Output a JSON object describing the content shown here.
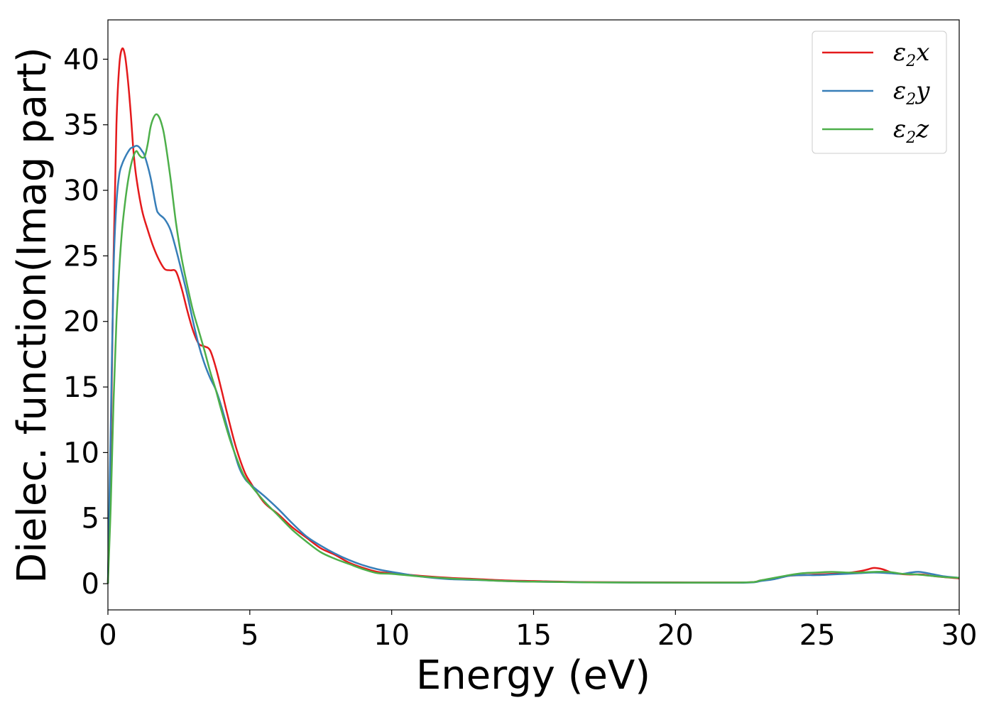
{
  "chart_data": {
    "type": "line",
    "xlabel": "Energy (eV)",
    "ylabel": "Dielec. function(Imag part)",
    "xlim": [
      0,
      30
    ],
    "ylim": [
      -2,
      43
    ],
    "xticks": [
      0,
      5,
      10,
      15,
      20,
      25,
      30
    ],
    "yticks": [
      0,
      5,
      10,
      15,
      20,
      25,
      30,
      35,
      40
    ],
    "grid": false,
    "legend_position": "top-right",
    "series": [
      {
        "name": "ε2x",
        "legend_base": "ε",
        "legend_sub": "2",
        "legend_suffix": "x",
        "color": "#e41a1c",
        "points": [
          [
            0,
            0
          ],
          [
            0.1,
            10
          ],
          [
            0.2,
            25
          ],
          [
            0.3,
            35
          ],
          [
            0.4,
            39.5
          ],
          [
            0.5,
            40.8
          ],
          [
            0.6,
            40.3
          ],
          [
            0.7,
            38.5
          ],
          [
            0.8,
            36
          ],
          [
            0.9,
            33
          ],
          [
            1.0,
            31
          ],
          [
            1.2,
            28.5
          ],
          [
            1.4,
            27
          ],
          [
            1.6,
            25.7
          ],
          [
            1.8,
            24.7
          ],
          [
            2.0,
            24.0
          ],
          [
            2.2,
            23.9
          ],
          [
            2.4,
            23.8
          ],
          [
            2.6,
            22.5
          ],
          [
            2.8,
            20.8
          ],
          [
            3.0,
            19.3
          ],
          [
            3.2,
            18.3
          ],
          [
            3.4,
            18.1
          ],
          [
            3.6,
            17.8
          ],
          [
            3.8,
            16.5
          ],
          [
            4.0,
            14.8
          ],
          [
            4.2,
            13
          ],
          [
            4.5,
            10.5
          ],
          [
            4.8,
            8.6
          ],
          [
            5.0,
            7.8
          ],
          [
            5.5,
            6.2
          ],
          [
            6.0,
            5.3
          ],
          [
            6.5,
            4.3
          ],
          [
            7.0,
            3.5
          ],
          [
            7.5,
            2.7
          ],
          [
            8.0,
            2.2
          ],
          [
            8.5,
            1.6
          ],
          [
            9.0,
            1.2
          ],
          [
            9.5,
            0.9
          ],
          [
            10.0,
            0.8
          ],
          [
            11,
            0.6
          ],
          [
            12,
            0.45
          ],
          [
            13,
            0.35
          ],
          [
            14,
            0.25
          ],
          [
            15,
            0.2
          ],
          [
            17,
            0.12
          ],
          [
            20,
            0.1
          ],
          [
            22.5,
            0.1
          ],
          [
            23,
            0.25
          ],
          [
            23.5,
            0.4
          ],
          [
            24,
            0.6
          ],
          [
            24.5,
            0.65
          ],
          [
            25,
            0.7
          ],
          [
            25.5,
            0.75
          ],
          [
            26,
            0.8
          ],
          [
            26.5,
            0.95
          ],
          [
            26.8,
            1.1
          ],
          [
            27.0,
            1.2
          ],
          [
            27.3,
            1.1
          ],
          [
            27.7,
            0.8
          ],
          [
            28.2,
            0.7
          ],
          [
            28.7,
            0.7
          ],
          [
            29.2,
            0.55
          ],
          [
            30,
            0.4
          ]
        ]
      },
      {
        "name": "ε2y",
        "legend_base": "ε",
        "legend_sub": "2",
        "legend_suffix": "y",
        "color": "#377eb8",
        "points": [
          [
            0,
            0
          ],
          [
            0.1,
            12
          ],
          [
            0.2,
            24
          ],
          [
            0.3,
            29
          ],
          [
            0.4,
            31.2
          ],
          [
            0.5,
            32
          ],
          [
            0.6,
            32.5
          ],
          [
            0.7,
            32.9
          ],
          [
            0.8,
            33.2
          ],
          [
            0.9,
            33.3
          ],
          [
            1.0,
            33.4
          ],
          [
            1.1,
            33.3
          ],
          [
            1.2,
            33.0
          ],
          [
            1.3,
            32.6
          ],
          [
            1.5,
            31.0
          ],
          [
            1.7,
            28.7
          ],
          [
            1.8,
            28.2
          ],
          [
            2.0,
            27.8
          ],
          [
            2.2,
            27.0
          ],
          [
            2.4,
            25.5
          ],
          [
            2.6,
            23.8
          ],
          [
            2.8,
            22
          ],
          [
            3.0,
            20
          ],
          [
            3.2,
            18.2
          ],
          [
            3.4,
            16.8
          ],
          [
            3.6,
            15.7
          ],
          [
            3.8,
            14.8
          ],
          [
            4.0,
            13.5
          ],
          [
            4.3,
            11.2
          ],
          [
            4.6,
            9
          ],
          [
            4.8,
            8.1
          ],
          [
            5.0,
            7.6
          ],
          [
            5.5,
            6.7
          ],
          [
            6.0,
            5.7
          ],
          [
            6.5,
            4.6
          ],
          [
            7.0,
            3.6
          ],
          [
            7.5,
            2.9
          ],
          [
            8.0,
            2.3
          ],
          [
            8.5,
            1.8
          ],
          [
            9.0,
            1.4
          ],
          [
            9.5,
            1.1
          ],
          [
            10.0,
            0.9
          ],
          [
            11,
            0.55
          ],
          [
            12,
            0.35
          ],
          [
            13,
            0.28
          ],
          [
            14,
            0.2
          ],
          [
            15,
            0.15
          ],
          [
            17,
            0.1
          ],
          [
            20,
            0.08
          ],
          [
            22.5,
            0.08
          ],
          [
            23,
            0.2
          ],
          [
            23.5,
            0.35
          ],
          [
            24,
            0.6
          ],
          [
            24.5,
            0.65
          ],
          [
            25,
            0.65
          ],
          [
            25.5,
            0.7
          ],
          [
            26,
            0.75
          ],
          [
            26.5,
            0.8
          ],
          [
            27,
            0.85
          ],
          [
            27.5,
            0.8
          ],
          [
            28,
            0.75
          ],
          [
            28.3,
            0.85
          ],
          [
            28.6,
            0.9
          ],
          [
            29.0,
            0.75
          ],
          [
            29.5,
            0.55
          ],
          [
            30,
            0.45
          ]
        ]
      },
      {
        "name": "ε2z",
        "legend_base": "ε",
        "legend_sub": "2",
        "legend_suffix": "z",
        "color": "#4daf4a",
        "points": [
          [
            0,
            0
          ],
          [
            0.1,
            6
          ],
          [
            0.2,
            14
          ],
          [
            0.3,
            20
          ],
          [
            0.4,
            24
          ],
          [
            0.5,
            27
          ],
          [
            0.6,
            29
          ],
          [
            0.7,
            30.6
          ],
          [
            0.8,
            31.8
          ],
          [
            0.9,
            32.6
          ],
          [
            1.0,
            33.0
          ],
          [
            1.1,
            32.7
          ],
          [
            1.2,
            32.5
          ],
          [
            1.3,
            32.6
          ],
          [
            1.4,
            33.5
          ],
          [
            1.5,
            34.8
          ],
          [
            1.6,
            35.5
          ],
          [
            1.7,
            35.8
          ],
          [
            1.8,
            35.6
          ],
          [
            1.9,
            35.0
          ],
          [
            2.0,
            34.0
          ],
          [
            2.2,
            31.0
          ],
          [
            2.4,
            27.5
          ],
          [
            2.6,
            24.8
          ],
          [
            2.8,
            22.7
          ],
          [
            3.0,
            20.8
          ],
          [
            3.2,
            19.3
          ],
          [
            3.4,
            17.8
          ],
          [
            3.6,
            16.2
          ],
          [
            3.8,
            14.8
          ],
          [
            4.0,
            13.2
          ],
          [
            4.3,
            11
          ],
          [
            4.6,
            9.2
          ],
          [
            4.8,
            8.2
          ],
          [
            5.0,
            7.6
          ],
          [
            5.5,
            6.3
          ],
          [
            6.0,
            5.2
          ],
          [
            6.5,
            4.1
          ],
          [
            7.0,
            3.2
          ],
          [
            7.5,
            2.4
          ],
          [
            8.0,
            1.9
          ],
          [
            8.5,
            1.5
          ],
          [
            9.0,
            1.1
          ],
          [
            9.5,
            0.8
          ],
          [
            10.0,
            0.75
          ],
          [
            11,
            0.55
          ],
          [
            12,
            0.4
          ],
          [
            13,
            0.3
          ],
          [
            14,
            0.2
          ],
          [
            15,
            0.15
          ],
          [
            17,
            0.1
          ],
          [
            20,
            0.08
          ],
          [
            22.5,
            0.1
          ],
          [
            23,
            0.25
          ],
          [
            23.5,
            0.45
          ],
          [
            24,
            0.65
          ],
          [
            24.5,
            0.8
          ],
          [
            25,
            0.85
          ],
          [
            25.5,
            0.9
          ],
          [
            26,
            0.85
          ],
          [
            26.5,
            0.85
          ],
          [
            27,
            0.9
          ],
          [
            27.5,
            0.9
          ],
          [
            28,
            0.75
          ],
          [
            28.5,
            0.7
          ],
          [
            29,
            0.6
          ],
          [
            29.5,
            0.5
          ],
          [
            30,
            0.45
          ]
        ]
      }
    ]
  }
}
